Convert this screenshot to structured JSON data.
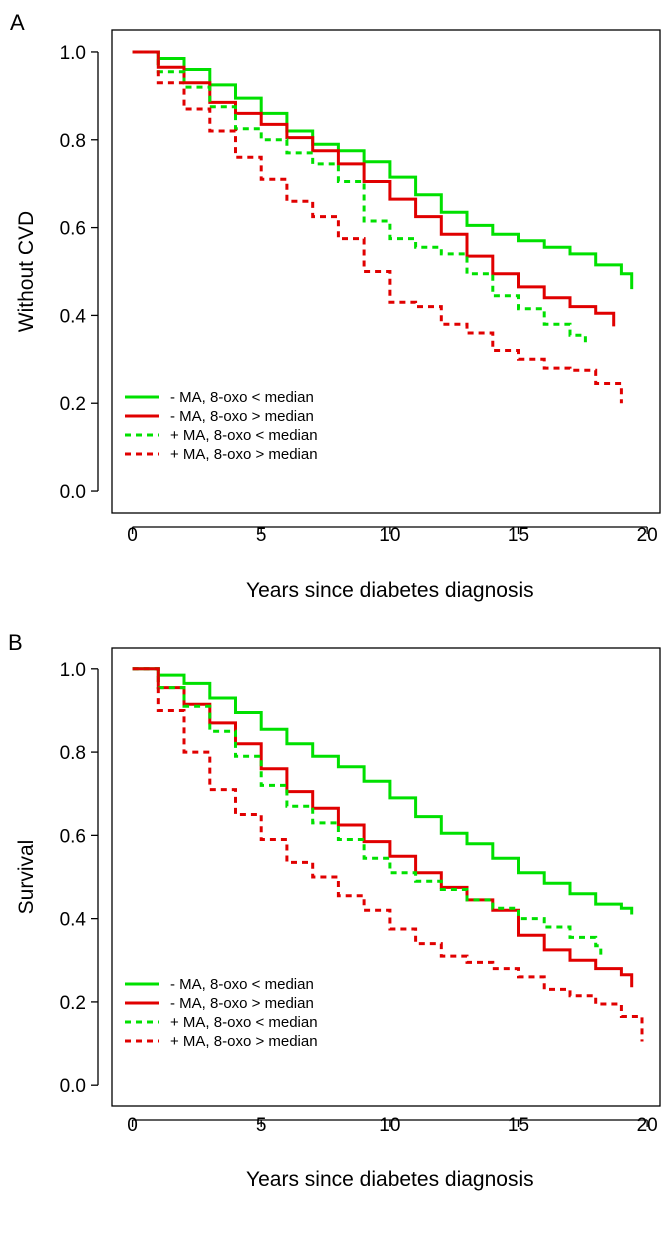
{
  "chart_data": [
    {
      "panel_label": "A",
      "type": "line",
      "xlabel": "Years since diabetes diagnosis",
      "ylabel": "Without CVD",
      "xlim": [
        -0.8,
        20.5
      ],
      "ylim": [
        -0.05,
        1.05
      ],
      "xticks": [
        0,
        5,
        10,
        15,
        20
      ],
      "yticks": [
        "0.0",
        "0.2",
        "0.4",
        "0.6",
        "0.8",
        "1.0"
      ],
      "grid": false,
      "legend_position": "bottom-left",
      "series": [
        {
          "name": "- MA, 8-oxo < median",
          "color": "#00e000",
          "dash": "solid",
          "x": [
            0,
            1,
            2,
            3,
            4,
            5,
            6,
            7,
            8,
            9,
            10,
            11,
            12,
            13,
            14,
            15,
            16,
            17,
            18,
            19,
            19.4
          ],
          "y": [
            1.0,
            0.985,
            0.96,
            0.925,
            0.895,
            0.86,
            0.82,
            0.79,
            0.775,
            0.75,
            0.715,
            0.675,
            0.635,
            0.605,
            0.585,
            0.57,
            0.555,
            0.54,
            0.515,
            0.495,
            0.46
          ]
        },
        {
          "name": "- MA, 8-oxo > median",
          "color": "#e00000",
          "dash": "solid",
          "x": [
            0,
            1,
            2,
            3,
            4,
            5,
            6,
            7,
            8,
            9,
            10,
            11,
            12,
            13,
            14,
            15,
            16,
            17,
            18,
            18.7
          ],
          "y": [
            1.0,
            0.965,
            0.93,
            0.885,
            0.86,
            0.835,
            0.805,
            0.775,
            0.745,
            0.705,
            0.665,
            0.625,
            0.585,
            0.535,
            0.495,
            0.465,
            0.44,
            0.42,
            0.405,
            0.375
          ]
        },
        {
          "name": "+ MA, 8-oxo < median",
          "color": "#00e000",
          "dash": "dashed",
          "x": [
            0,
            1,
            2,
            3,
            4,
            5,
            6,
            7,
            8,
            9,
            10,
            11,
            12,
            13,
            14,
            15,
            16,
            17,
            17.6
          ],
          "y": [
            1.0,
            0.955,
            0.92,
            0.875,
            0.825,
            0.8,
            0.77,
            0.745,
            0.705,
            0.615,
            0.575,
            0.555,
            0.54,
            0.495,
            0.445,
            0.415,
            0.38,
            0.355,
            0.33
          ]
        },
        {
          "name": "+ MA, 8-oxo > median",
          "color": "#e00000",
          "dash": "dashed",
          "x": [
            0,
            1,
            2,
            3,
            4,
            5,
            6,
            7,
            8,
            9,
            10,
            11,
            12,
            13,
            14,
            15,
            16,
            17,
            18,
            19
          ],
          "y": [
            1.0,
            0.93,
            0.87,
            0.82,
            0.76,
            0.71,
            0.66,
            0.625,
            0.575,
            0.5,
            0.43,
            0.42,
            0.38,
            0.36,
            0.32,
            0.3,
            0.28,
            0.275,
            0.245,
            0.2
          ]
        }
      ]
    },
    {
      "panel_label": "B",
      "type": "line",
      "xlabel": "Years since diabetes diagnosis",
      "ylabel": "Survival",
      "xlim": [
        -0.8,
        20.5
      ],
      "ylim": [
        -0.05,
        1.05
      ],
      "xticks": [
        0,
        5,
        10,
        15,
        20
      ],
      "yticks": [
        "0.0",
        "0.2",
        "0.4",
        "0.6",
        "0.8",
        "1.0"
      ],
      "grid": false,
      "legend_position": "bottom-left",
      "series": [
        {
          "name": "- MA, 8-oxo < median",
          "color": "#00e000",
          "dash": "solid",
          "x": [
            0,
            1,
            2,
            3,
            4,
            5,
            6,
            7,
            8,
            9,
            10,
            11,
            12,
            13,
            14,
            15,
            16,
            17,
            18,
            19,
            19.4
          ],
          "y": [
            1.0,
            0.985,
            0.965,
            0.93,
            0.895,
            0.855,
            0.82,
            0.79,
            0.765,
            0.73,
            0.69,
            0.645,
            0.605,
            0.58,
            0.545,
            0.51,
            0.485,
            0.46,
            0.435,
            0.425,
            0.41
          ]
        },
        {
          "name": "- MA, 8-oxo > median",
          "color": "#e00000",
          "dash": "solid",
          "x": [
            0,
            1,
            2,
            3,
            4,
            5,
            6,
            7,
            8,
            9,
            10,
            11,
            12,
            13,
            14,
            15,
            16,
            17,
            18,
            19,
            19.4
          ],
          "y": [
            1.0,
            0.955,
            0.915,
            0.87,
            0.82,
            0.76,
            0.705,
            0.665,
            0.625,
            0.585,
            0.55,
            0.51,
            0.475,
            0.445,
            0.42,
            0.36,
            0.325,
            0.3,
            0.28,
            0.265,
            0.235
          ]
        },
        {
          "name": "+ MA, 8-oxo < median",
          "color": "#00e000",
          "dash": "dashed",
          "x": [
            0,
            1,
            2,
            3,
            4,
            5,
            6,
            7,
            8,
            9,
            10,
            11,
            12,
            13,
            14,
            15,
            16,
            17,
            18,
            18.2
          ],
          "y": [
            1.0,
            0.955,
            0.91,
            0.85,
            0.79,
            0.72,
            0.67,
            0.63,
            0.59,
            0.545,
            0.51,
            0.49,
            0.47,
            0.445,
            0.425,
            0.4,
            0.38,
            0.355,
            0.335,
            0.31
          ]
        },
        {
          "name": "+ MA, 8-oxo > median",
          "color": "#e00000",
          "dash": "dashed",
          "x": [
            0,
            1,
            2,
            3,
            4,
            5,
            6,
            7,
            8,
            9,
            10,
            11,
            12,
            13,
            14,
            15,
            16,
            17,
            18,
            19,
            19.8
          ],
          "y": [
            1.0,
            0.9,
            0.8,
            0.71,
            0.65,
            0.59,
            0.535,
            0.5,
            0.455,
            0.42,
            0.375,
            0.34,
            0.31,
            0.295,
            0.28,
            0.26,
            0.23,
            0.215,
            0.195,
            0.165,
            0.105
          ]
        }
      ]
    }
  ]
}
